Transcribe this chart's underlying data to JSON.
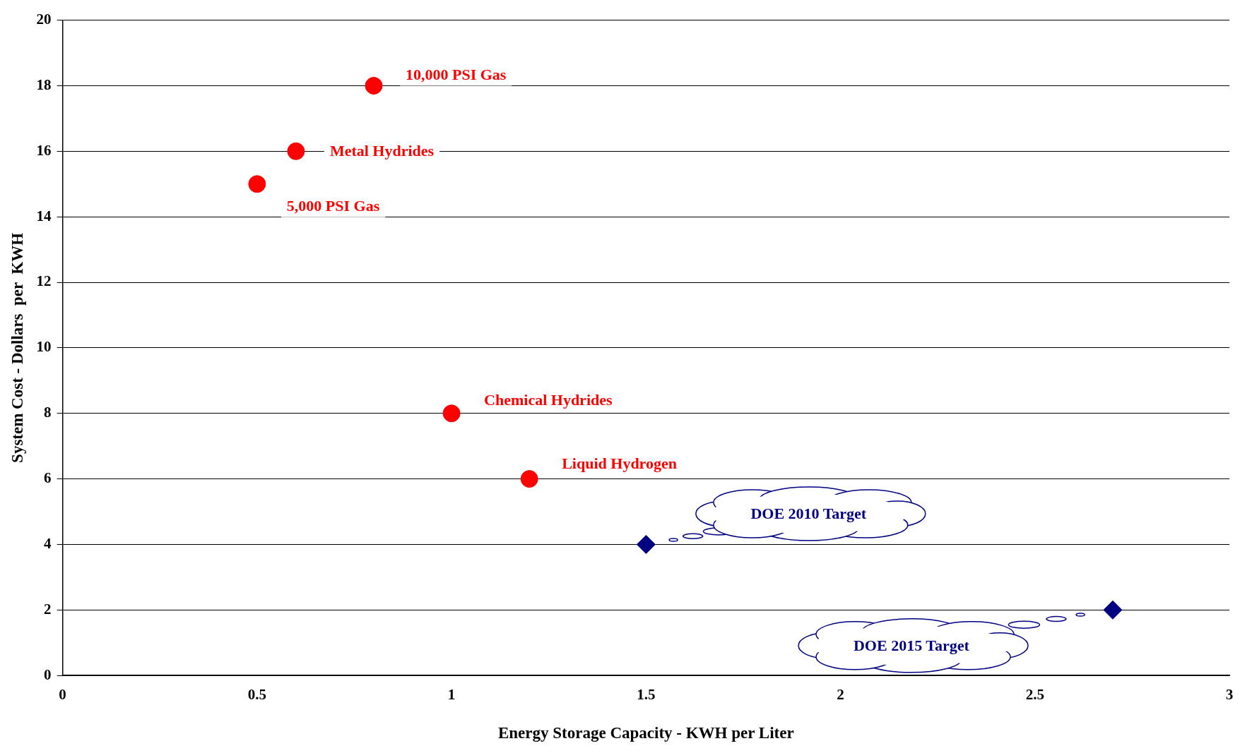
{
  "chart_data": {
    "type": "scatter",
    "xlabel": "Energy Storage Capacity - KWH per Liter",
    "ylabel": "System Cost - Dollars  per  KWH",
    "xlim": [
      0,
      3
    ],
    "xticks": [
      0,
      0.5,
      1,
      1.5,
      2,
      2.5,
      3
    ],
    "ylim": [
      0,
      20
    ],
    "yticks": [
      0,
      2,
      4,
      6,
      8,
      10,
      12,
      14,
      16,
      18,
      20
    ],
    "grid": "y",
    "legend": false,
    "series": [
      {
        "color": "#ff0000",
        "marker": "circle",
        "x": [
          0.8,
          0.6,
          0.5,
          1,
          1.2
        ],
        "values": [
          18,
          16,
          15,
          8,
          6
        ]
      },
      {
        "color": "#000080",
        "marker": "diamond",
        "x": [
          1.5,
          2.7
        ],
        "values": [
          4,
          2
        ]
      }
    ],
    "annotations": [
      {
        "text": "10,000 PSI Gas",
        "x": 0.8,
        "y": 18
      },
      {
        "text": "Metal Hydrides",
        "x": 0.6,
        "y": 16
      },
      {
        "text": "5,000 PSI Gas",
        "x": 0.5,
        "y": 15
      },
      {
        "text": "Chemical Hydrides",
        "x": 1,
        "y": 8
      },
      {
        "text": "Liquid Hydrogen",
        "x": 1.2,
        "y": 6
      },
      "DOE 2010 Target",
      "DOE 2015 Target"
    ]
  }
}
